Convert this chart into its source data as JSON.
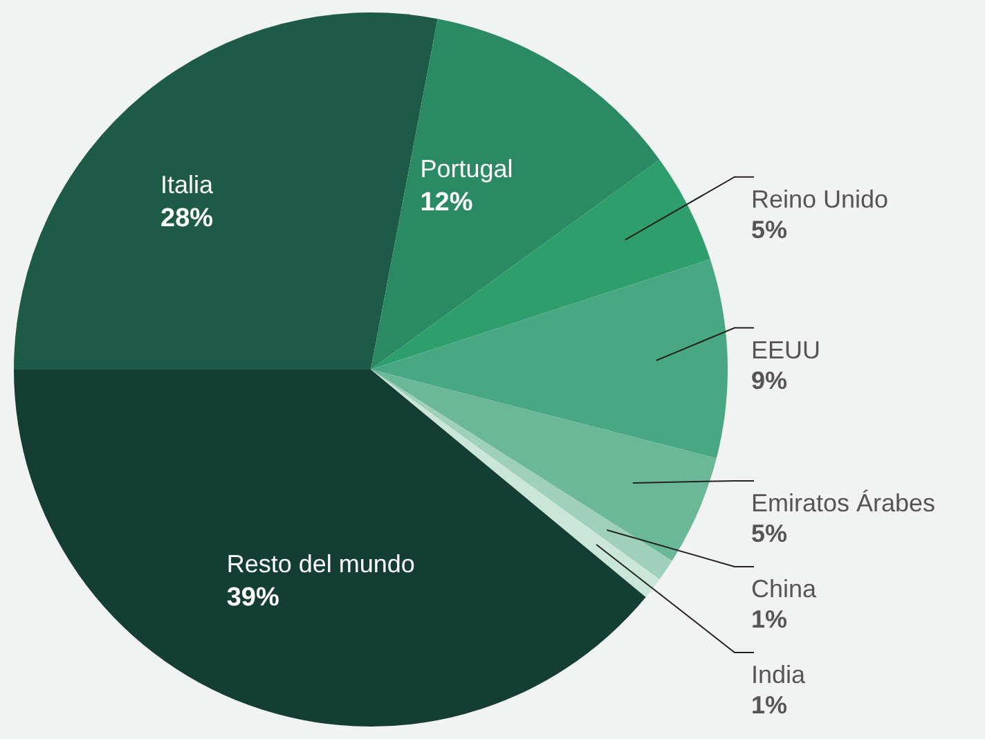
{
  "chart_data": {
    "type": "pie",
    "categories": [
      "Italia",
      "Portugal",
      "Reino Unido",
      "EEUU",
      "Emiratos Árabes",
      "China",
      "India",
      "Resto del mundo"
    ],
    "values": [
      28,
      12,
      5,
      9,
      5,
      1,
      1,
      39
    ],
    "value_labels": [
      "28%",
      "12%",
      "5%",
      "9%",
      "5%",
      "1%",
      "1%",
      "39%"
    ],
    "colors": [
      "#1e5a48",
      "#2a8a64",
      "#2e9e6c",
      "#48a883",
      "#6bb898",
      "#9fd0bb",
      "#c9e6d8",
      "#143d33"
    ],
    "legend": false
  }
}
